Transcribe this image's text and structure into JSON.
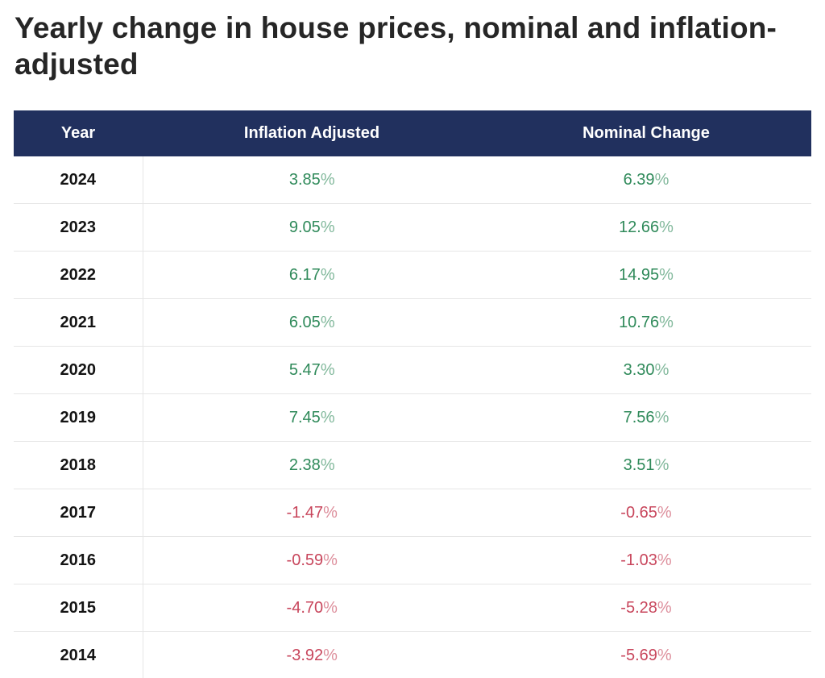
{
  "title": "Yearly change in house prices, nominal and inflation-adjusted",
  "colors": {
    "header_bg": "#21305e",
    "positive": "#2f8a5a",
    "negative": "#c8465c"
  },
  "table": {
    "headers": [
      "Year",
      "Inflation Adjusted",
      "Nominal Change"
    ],
    "rows": [
      {
        "year": "2024",
        "inflation_adjusted": "3.85",
        "nominal_change": "6.39"
      },
      {
        "year": "2023",
        "inflation_adjusted": "9.05",
        "nominal_change": "12.66"
      },
      {
        "year": "2022",
        "inflation_adjusted": "6.17",
        "nominal_change": "14.95"
      },
      {
        "year": "2021",
        "inflation_adjusted": "6.05",
        "nominal_change": "10.76"
      },
      {
        "year": "2020",
        "inflation_adjusted": "5.47",
        "nominal_change": "3.30"
      },
      {
        "year": "2019",
        "inflation_adjusted": "7.45",
        "nominal_change": "7.56"
      },
      {
        "year": "2018",
        "inflation_adjusted": "2.38",
        "nominal_change": "3.51"
      },
      {
        "year": "2017",
        "inflation_adjusted": "-1.47",
        "nominal_change": "-0.65"
      },
      {
        "year": "2016",
        "inflation_adjusted": "-0.59",
        "nominal_change": "-1.03"
      },
      {
        "year": "2015",
        "inflation_adjusted": "-4.70",
        "nominal_change": "-5.28"
      },
      {
        "year": "2014",
        "inflation_adjusted": "-3.92",
        "nominal_change": "-5.69"
      }
    ],
    "percent_sign": "%"
  }
}
